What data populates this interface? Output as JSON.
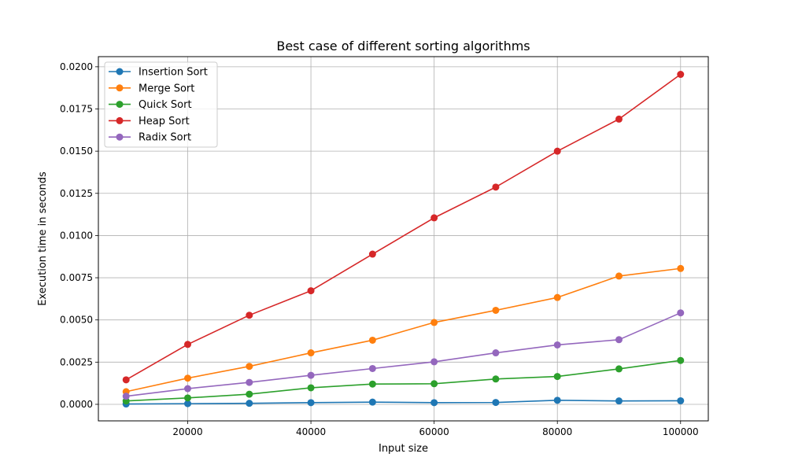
{
  "chart_data": {
    "type": "line",
    "title": "Best case of different sorting algorithms",
    "xlabel": "Input size",
    "ylabel": "Execution time in seconds",
    "x": [
      10000,
      20000,
      30000,
      40000,
      50000,
      60000,
      70000,
      80000,
      90000,
      100000
    ],
    "xlim": [
      5500,
      104500
    ],
    "ylim": [
      -0.00098,
      0.0206
    ],
    "xticks": [
      20000,
      40000,
      60000,
      80000,
      100000
    ],
    "xtick_labels": [
      "20000",
      "40000",
      "60000",
      "80000",
      "100000"
    ],
    "yticks": [
      0.0,
      0.0025,
      0.005,
      0.0075,
      0.01,
      0.0125,
      0.015,
      0.0175,
      0.02
    ],
    "ytick_labels": [
      "0.0000",
      "0.0025",
      "0.0050",
      "0.0075",
      "0.0100",
      "0.0125",
      "0.0150",
      "0.0175",
      "0.0200"
    ],
    "grid": true,
    "legend_position": "top-left",
    "series": [
      {
        "name": "Insertion Sort",
        "color": "#1f77b4",
        "values": [
          2e-05,
          4e-05,
          6e-05,
          0.0001,
          0.00013,
          0.0001,
          0.00011,
          0.00024,
          0.0002,
          0.00021
        ]
      },
      {
        "name": "Merge Sort",
        "color": "#ff7f0e",
        "values": [
          0.00075,
          0.00155,
          0.00225,
          0.00305,
          0.0038,
          0.00485,
          0.00557,
          0.00633,
          0.0076,
          0.00805
        ]
      },
      {
        "name": "Quick Sort",
        "color": "#2ca02c",
        "values": [
          0.0002,
          0.00038,
          0.0006,
          0.00098,
          0.0012,
          0.00122,
          0.0015,
          0.00165,
          0.0021,
          0.0026
        ]
      },
      {
        "name": "Heap Sort",
        "color": "#d62728",
        "values": [
          0.00145,
          0.00355,
          0.00528,
          0.00673,
          0.0089,
          0.01105,
          0.01287,
          0.015,
          0.0169,
          0.01955
        ]
      },
      {
        "name": "Radix Sort",
        "color": "#9467bd",
        "values": [
          0.00048,
          0.00093,
          0.0013,
          0.00172,
          0.00212,
          0.00252,
          0.00305,
          0.00352,
          0.00383,
          0.00542
        ]
      }
    ]
  }
}
